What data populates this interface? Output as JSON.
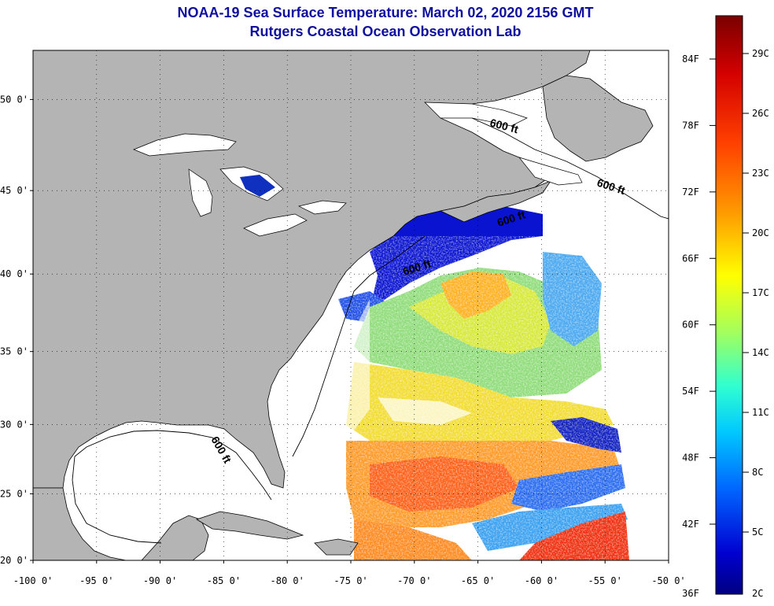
{
  "title": {
    "line1": "NOAA-19 Sea Surface Temperature:  March 02, 2020 2156 GMT",
    "line2": "Rutgers Coastal Ocean Observation Lab"
  },
  "map": {
    "lon_range": [
      -100,
      -50
    ],
    "lat_range": [
      20,
      52.5
    ],
    "lat_ticks": [
      {
        "value": 50,
        "label": "50 0'"
      },
      {
        "value": 45,
        "label": "45 0'"
      },
      {
        "value": 40,
        "label": "40 0'"
      },
      {
        "value": 35,
        "label": "35 0'"
      },
      {
        "value": 30,
        "label": "30 0'"
      },
      {
        "value": 25,
        "label": "25 0'"
      },
      {
        "value": 20,
        "label": "20 0'"
      }
    ],
    "lon_ticks": [
      {
        "value": -100,
        "label": "-100 0'"
      },
      {
        "value": -95,
        "label": "-95 0'"
      },
      {
        "value": -90,
        "label": "-90 0'"
      },
      {
        "value": -85,
        "label": "-85 0'"
      },
      {
        "value": -80,
        "label": "-80 0'"
      },
      {
        "value": -75,
        "label": "-75 0'"
      },
      {
        "value": -70,
        "label": "-70 0'"
      },
      {
        "value": -65,
        "label": "-65 0'"
      },
      {
        "value": -60,
        "label": "-60 0'"
      },
      {
        "value": -55,
        "label": "-55 0'"
      },
      {
        "value": -50,
        "label": "-50 0'"
      }
    ],
    "isobath_labels": [
      "600 ft",
      "600 ft",
      "600 ft",
      "600 ft",
      "600 ft"
    ],
    "colors": {
      "land": "#b4b4b4",
      "ocean_nodata": "#ffffff",
      "coastline": "#000000"
    }
  },
  "colorbar": {
    "fahrenheit_labels": [
      "84F",
      "78F",
      "72F",
      "66F",
      "60F",
      "54F",
      "48F",
      "42F",
      "36F"
    ],
    "celsius_labels": [
      "29C",
      "26C",
      "23C",
      "20C",
      "17C",
      "14C",
      "11C",
      "8C",
      "5C",
      "2C"
    ],
    "colors": [
      "#7a0000",
      "#d40000",
      "#ff4000",
      "#ff9a00",
      "#ffff00",
      "#a0ff60",
      "#30ffd0",
      "#00c8ff",
      "#0064ff",
      "#0000d0",
      "#000080"
    ]
  }
}
